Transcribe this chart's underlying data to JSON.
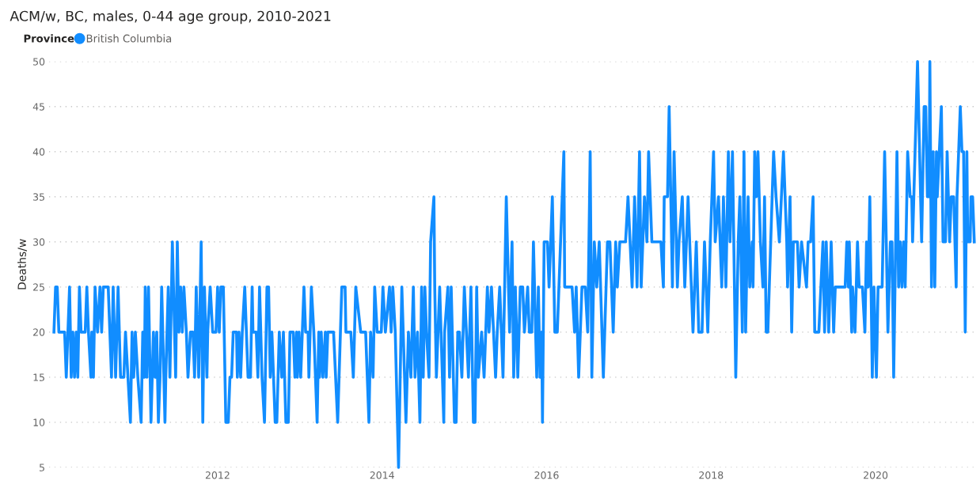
{
  "chart_data": {
    "type": "line",
    "title": "ACM/w, BC, males, 0-44 age group, 2010-2021",
    "ylabel": "Deaths/w",
    "legend_title": "Province",
    "legend": "top left",
    "grid": "y",
    "xlim": [
      2009.95,
      2021.21
    ],
    "xticks": [
      2012,
      2014,
      2016,
      2018,
      2020
    ],
    "ylim": [
      5,
      50
    ],
    "yticks": [
      5,
      10,
      15,
      20,
      25,
      30,
      35,
      40,
      45,
      50
    ],
    "series": [
      {
        "name": "British Columbia",
        "color": "#118dff",
        "x": [
          2010.01,
          2010.03,
          2010.05,
          2010.07,
          2010.14,
          2010.16,
          2010.2,
          2010.22,
          2010.24,
          2010.26,
          2010.28,
          2010.3,
          2010.32,
          2010.34,
          2010.39,
          2010.41,
          2010.43,
          2010.46,
          2010.47,
          2010.49,
          2010.51,
          2010.54,
          2010.57,
          2010.59,
          2010.61,
          2010.67,
          2010.71,
          2010.73,
          2010.76,
          2010.79,
          2010.82,
          2010.86,
          2010.88,
          2010.94,
          2010.96,
          2010.98,
          2011.0,
          2011.03,
          2011.07,
          2011.09,
          2011.11,
          2011.12,
          2011.14,
          2011.16,
          2011.19,
          2011.22,
          2011.24,
          2011.26,
          2011.28,
          2011.3,
          2011.32,
          2011.36,
          2011.37,
          2011.4,
          2011.42,
          2011.45,
          2011.49,
          2011.51,
          2011.53,
          2011.55,
          2011.57,
          2011.59,
          2011.62,
          2011.64,
          2011.67,
          2011.7,
          2011.72,
          2011.74,
          2011.77,
          2011.8,
          2011.82,
          2011.84,
          2011.87,
          2011.88,
          2011.91,
          2011.94,
          2011.98,
          2012.0,
          2012.02,
          2012.04,
          2012.07,
          2012.1,
          2012.13,
          2012.15,
          2012.17,
          2012.19,
          2012.23,
          2012.24,
          2012.26,
          2012.28,
          2012.3,
          2012.33,
          2012.37,
          2012.4,
          2012.42,
          2012.43,
          2012.47,
          2012.49,
          2012.51,
          2012.54,
          2012.57,
          2012.6,
          2012.62,
          2012.64,
          2012.66,
          2012.7,
          2012.72,
          2012.75,
          2012.78,
          2012.8,
          2012.83,
          2012.86,
          2012.88,
          2012.92,
          2012.94,
          2012.96,
          2012.97,
          2012.99,
          2013.01,
          2013.03,
          2013.05,
          2013.07,
          2013.1,
          2013.11,
          2013.14,
          2013.17,
          2013.19,
          2013.21,
          2013.23,
          2013.24,
          2013.26,
          2013.28,
          2013.31,
          2013.32,
          2013.34,
          2013.37,
          2013.41,
          2013.46,
          2013.51,
          2013.55,
          2013.56,
          2013.62,
          2013.65,
          2013.68,
          2013.74,
          2013.8,
          2013.84,
          2013.86,
          2013.89,
          2013.91,
          2013.94,
          2013.99,
          2014.01,
          2014.04,
          2014.09,
          2014.11,
          2014.13,
          2014.16,
          2014.2,
          2014.24,
          2014.29,
          2014.32,
          2014.35,
          2014.38,
          2014.4,
          2014.43,
          2014.46,
          2014.48,
          2014.5,
          2014.52,
          2014.54,
          2014.57,
          2014.59,
          2014.63,
          2014.64,
          2014.66,
          2014.7,
          2014.75,
          2014.76,
          2014.8,
          2014.82,
          2014.84,
          2014.88,
          2014.9,
          2014.92,
          2014.94,
          2014.97,
          2015.0,
          2015.05,
          2015.08,
          2015.11,
          2015.13,
          2015.15,
          2015.17,
          2015.21,
          2015.24,
          2015.28,
          2015.3,
          2015.33,
          2015.38,
          2015.4,
          2015.43,
          2015.47,
          2015.51,
          2015.55,
          2015.58,
          2015.6,
          2015.62,
          2015.65,
          2015.68,
          2015.71,
          2015.73,
          2015.77,
          2015.79,
          2015.82,
          2015.84,
          2015.88,
          2015.9,
          2015.92,
          2015.94,
          2015.95,
          2015.97,
          2016.01,
          2016.03,
          2016.07,
          2016.1,
          2016.13,
          2016.17,
          2016.21,
          2016.22,
          2016.31,
          2016.34,
          2016.36,
          2016.39,
          2016.43,
          2016.47,
          2016.5,
          2016.53,
          2016.55,
          2016.58,
          2016.61,
          2016.64,
          2016.69,
          2016.74,
          2016.77,
          2016.81,
          2016.84,
          2016.86,
          2016.89,
          2016.96,
          2016.99,
          2017.04,
          2017.07,
          2017.1,
          2017.13,
          2017.15,
          2017.19,
          2017.22,
          2017.24,
          2017.28,
          2017.39,
          2017.42,
          2017.43,
          2017.47,
          2017.49,
          2017.53,
          2017.55,
          2017.59,
          2017.61,
          2017.65,
          2017.68,
          2017.72,
          2017.78,
          2017.82,
          2017.85,
          2017.89,
          2017.92,
          2017.96,
          2017.99,
          2018.03,
          2018.05,
          2018.09,
          2018.13,
          2018.15,
          2018.18,
          2018.21,
          2018.23,
          2018.26,
          2018.3,
          2018.33,
          2018.35,
          2018.38,
          2018.4,
          2018.42,
          2018.45,
          2018.47,
          2018.5,
          2018.51,
          2018.53,
          2018.55,
          2018.57,
          2018.6,
          2018.63,
          2018.65,
          2018.67,
          2018.69,
          2018.76,
          2018.79,
          2018.83,
          2018.88,
          2018.92,
          2018.93,
          2018.96,
          2018.98,
          2019.0,
          2019.05,
          2019.07,
          2019.1,
          2019.16,
          2019.18,
          2019.21,
          2019.24,
          2019.26,
          2019.31,
          2019.36,
          2019.38,
          2019.4,
          2019.43,
          2019.46,
          2019.49,
          2019.51,
          2019.63,
          2019.65,
          2019.67,
          2019.68,
          2019.71,
          2019.72,
          2019.75,
          2019.78,
          2019.8,
          2019.84,
          2019.87,
          2019.89,
          2019.91,
          2019.93,
          2019.96,
          2019.98,
          2020.01,
          2020.03,
          2020.08,
          2020.11,
          2020.15,
          2020.18,
          2020.2,
          2020.22,
          2020.26,
          2020.28,
          2020.3,
          2020.32,
          2020.34,
          2020.36,
          2020.39,
          2020.42,
          2020.44,
          2020.45,
          2020.48,
          2020.51,
          2020.56,
          2020.59,
          2020.61,
          2020.63,
          2020.65,
          2020.66,
          2020.68,
          2020.7,
          2020.72,
          2020.74,
          2020.75,
          2020.8,
          2020.82,
          2020.85,
          2020.87,
          2020.9,
          2020.92,
          2020.95,
          2020.98,
          2020.99,
          2021.03,
          2021.05,
          2021.07,
          2021.09,
          2021.11,
          2021.12,
          2021.15,
          2021.16,
          2021.18,
          2021.2
        ],
        "values": [
          20,
          25,
          25,
          20,
          20,
          15,
          25,
          15,
          20,
          15,
          20,
          15,
          25,
          20,
          20,
          25,
          20,
          15,
          20,
          15,
          25,
          20,
          25,
          20,
          25,
          25,
          15,
          25,
          15,
          25,
          15,
          15,
          20,
          10,
          20,
          15,
          20,
          15,
          10,
          20,
          15,
          25,
          15,
          25,
          10,
          20,
          15,
          20,
          10,
          15,
          25,
          10,
          15,
          25,
          15,
          30,
          15,
          30,
          20,
          25,
          20,
          25,
          20,
          15,
          20,
          20,
          15,
          25,
          15,
          30,
          10,
          25,
          15,
          20,
          25,
          20,
          20,
          25,
          20,
          25,
          25,
          10,
          10,
          15,
          15,
          20,
          20,
          15,
          20,
          15,
          20,
          25,
          15,
          15,
          25,
          20,
          20,
          15,
          25,
          15,
          10,
          25,
          25,
          15,
          20,
          10,
          10,
          20,
          15,
          20,
          10,
          10,
          20,
          20,
          15,
          20,
          15,
          20,
          15,
          20,
          25,
          20,
          20,
          15,
          25,
          20,
          15,
          10,
          20,
          15,
          20,
          15,
          20,
          15,
          20,
          20,
          20,
          10,
          25,
          25,
          20,
          20,
          15,
          25,
          20,
          20,
          10,
          20,
          15,
          25,
          20,
          20,
          25,
          20,
          25,
          20,
          25,
          20,
          5,
          25,
          10,
          20,
          15,
          25,
          15,
          20,
          10,
          25,
          15,
          25,
          20,
          15,
          30,
          35,
          25,
          15,
          25,
          10,
          20,
          25,
          15,
          25,
          10,
          10,
          20,
          20,
          15,
          25,
          15,
          25,
          10,
          10,
          25,
          15,
          20,
          15,
          25,
          20,
          25,
          15,
          20,
          25,
          15,
          35,
          20,
          30,
          15,
          25,
          15,
          25,
          25,
          20,
          25,
          20,
          20,
          30,
          15,
          25,
          15,
          20,
          10,
          30,
          30,
          25,
          35,
          20,
          20,
          30,
          40,
          25,
          25,
          20,
          25,
          15,
          25,
          25,
          20,
          40,
          15,
          30,
          25,
          30,
          15,
          30,
          30,
          20,
          30,
          25,
          30,
          30,
          35,
          25,
          35,
          25,
          40,
          25,
          35,
          30,
          40,
          30,
          30,
          25,
          35,
          35,
          45,
          25,
          40,
          25,
          30,
          35,
          25,
          35,
          20,
          30,
          20,
          20,
          30,
          20,
          30,
          40,
          30,
          35,
          25,
          35,
          25,
          40,
          30,
          40,
          15,
          30,
          35,
          20,
          40,
          20,
          35,
          25,
          30,
          25,
          40,
          35,
          40,
          30,
          25,
          35,
          20,
          20,
          40,
          35,
          30,
          40,
          30,
          25,
          35,
          20,
          30,
          30,
          25,
          30,
          25,
          30,
          30,
          35,
          20,
          20,
          30,
          20,
          30,
          20,
          30,
          20,
          25,
          25,
          30,
          25,
          30,
          20,
          25,
          20,
          30,
          25,
          25,
          20,
          30,
          25,
          35,
          15,
          25,
          15,
          25,
          25,
          40,
          20,
          30,
          30,
          15,
          40,
          25,
          30,
          25,
          30,
          25,
          40,
          35,
          35,
          30,
          40,
          50,
          30,
          45,
          45,
          35,
          35,
          50,
          25,
          40,
          25,
          40,
          35,
          45,
          30,
          30,
          40,
          30,
          35,
          35,
          25,
          35,
          45,
          40,
          40,
          20,
          40,
          30,
          30,
          35,
          35,
          30
        ]
      }
    ]
  }
}
